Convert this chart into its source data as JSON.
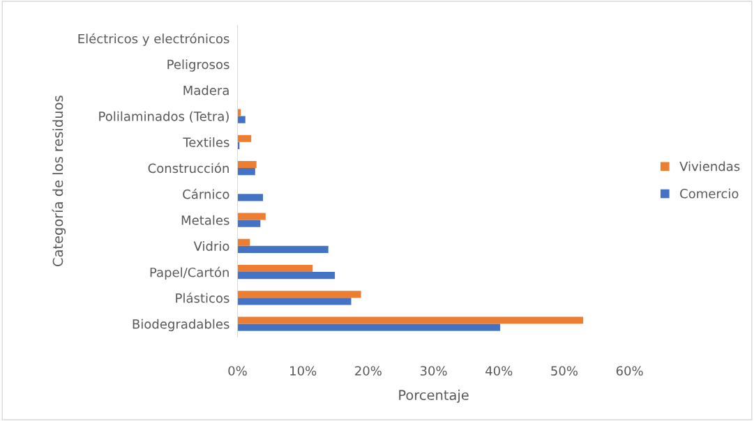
{
  "chart_data": {
    "type": "bar",
    "orientation": "horizontal",
    "xlabel": "Porcentaje",
    "ylabel": "Categoría de los residuos",
    "categories": [
      "Eléctricos y electrónicos",
      "Peligrosos",
      "Madera",
      "Polilaminados (Tetra)",
      "Textiles",
      "Construcción",
      "Cárnico",
      "Metales",
      "Vidrio",
      "Papel/Cartón",
      "Plásticos",
      "Biodegradables"
    ],
    "series": [
      {
        "name": "Comercio",
        "color": "#4472c4",
        "values": [
          0,
          0,
          0,
          1.2,
          0.3,
          2.7,
          3.9,
          3.5,
          13.9,
          14.9,
          17.4,
          40.2
        ]
      },
      {
        "name": "Viviendas",
        "color": "#ed7d31",
        "values": [
          0,
          0,
          0,
          0.5,
          2.1,
          2.9,
          0,
          4.3,
          1.9,
          11.5,
          18.9,
          52.9
        ]
      }
    ],
    "xlim": [
      0,
      60
    ],
    "xticks": [
      {
        "value": 0,
        "label": "0%"
      },
      {
        "value": 10,
        "label": "10%"
      },
      {
        "value": 20,
        "label": "20%"
      },
      {
        "value": 30,
        "label": "30%"
      },
      {
        "value": 40,
        "label": "40%"
      },
      {
        "value": 50,
        "label": "50%"
      },
      {
        "value": 60,
        "label": "60%"
      }
    ],
    "grid": false,
    "legend": "right"
  }
}
